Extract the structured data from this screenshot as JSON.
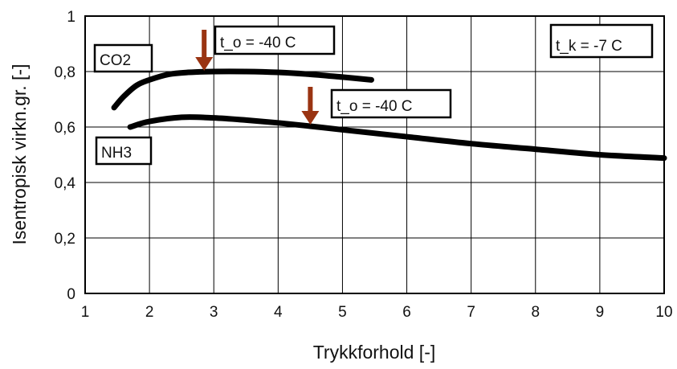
{
  "chart_data": {
    "type": "line",
    "xlabel": "Trykkforhold [-]",
    "ylabel": "Isentropisk virkn.gr. [-]",
    "xlim": [
      1,
      10
    ],
    "ylim": [
      0,
      1
    ],
    "x_ticks": [
      "1",
      "2",
      "3",
      "4",
      "5",
      "6",
      "7",
      "8",
      "9",
      "10"
    ],
    "y_ticks": [
      "0",
      "0,2",
      "0,4",
      "0,6",
      "0,8",
      "1"
    ],
    "grid": true,
    "series": [
      {
        "name": "CO2",
        "x": [
          1.45,
          1.6,
          1.8,
          2.0,
          2.3,
          2.6,
          3.0,
          3.5,
          4.0,
          4.5,
          5.0,
          5.45
        ],
        "y": [
          0.67,
          0.71,
          0.75,
          0.77,
          0.79,
          0.797,
          0.8,
          0.8,
          0.797,
          0.79,
          0.78,
          0.77
        ]
      },
      {
        "name": "NH3",
        "x": [
          1.7,
          2.0,
          2.5,
          3.0,
          3.5,
          4.0,
          4.5,
          5.0,
          6.0,
          7.0,
          8.0,
          9.0,
          10.0
        ],
        "y": [
          0.6,
          0.62,
          0.635,
          0.633,
          0.625,
          0.615,
          0.603,
          0.59,
          0.565,
          0.54,
          0.52,
          0.5,
          0.488
        ]
      }
    ],
    "annotations": [
      {
        "text": "t_o = -40 C",
        "arrow_x": 2.85,
        "series": "CO2"
      },
      {
        "text": "t_o = -40 C",
        "arrow_x": 4.5,
        "series": "NH3"
      },
      {
        "text": "t_k = -7 C"
      }
    ],
    "arrow_color": "#9a3412"
  }
}
